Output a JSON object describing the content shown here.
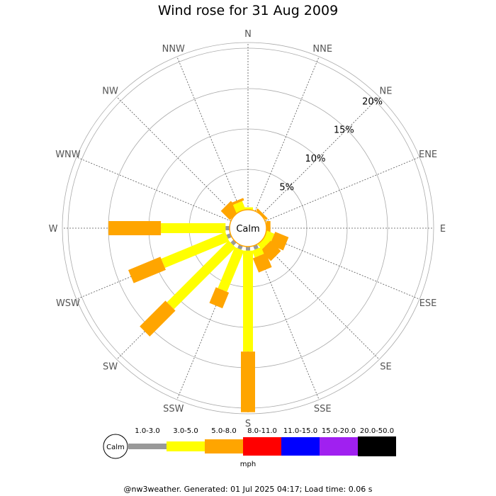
{
  "title": "Wind rose for 31 Aug 2009",
  "footer": "@nw3weather. Generated: 01 Jul 2025 04:17; Load time: 0.06 s",
  "calm_label": "Calm",
  "directions": [
    "N",
    "NNE",
    "NE",
    "ENE",
    "E",
    "ESE",
    "SE",
    "SSE",
    "S",
    "SSW",
    "SW",
    "WSW",
    "W",
    "WNW",
    "NW",
    "NNW"
  ],
  "percent_labels": [
    "5%",
    "10%",
    "15%",
    "20%"
  ],
  "legend": {
    "calm": "Calm",
    "unit": "mph",
    "bins": [
      {
        "label": "1.0-3.0",
        "color": "#999999"
      },
      {
        "label": "3.0-5.0",
        "color": "#ffff00"
      },
      {
        "label": "5.0-8.0",
        "color": "#ffa500"
      },
      {
        "label": "8.0-11.0",
        "color": "#ff0000"
      },
      {
        "label": "11.0-15.0",
        "color": "#0000ff"
      },
      {
        "label": "15.0-20.0",
        "color": "#a020f0"
      },
      {
        "label": "20.0-50.0",
        "color": "#000000"
      }
    ]
  },
  "chart_data": {
    "type": "wind-rose",
    "unit": "%",
    "rings": [
      5,
      10,
      15,
      20
    ],
    "directions": [
      "N",
      "NNE",
      "NE",
      "ENE",
      "E",
      "ESE",
      "SE",
      "SSE",
      "S",
      "SSW",
      "SW",
      "WSW",
      "W",
      "WNW",
      "NW",
      "NNW"
    ],
    "series": [
      {
        "name": "1.0-3.0",
        "color": "#999999",
        "values": [
          0,
          0,
          0,
          0,
          0,
          0,
          0,
          0.5,
          0.5,
          0.5,
          0.5,
          0.5,
          0.5,
          0,
          0,
          0
        ]
      },
      {
        "name": "3.0-5.0",
        "color": "#ffff00",
        "values": [
          0.3,
          0,
          0,
          0,
          0,
          1.0,
          0.8,
          0.9,
          12.5,
          5.5,
          10.8,
          8.6,
          8.0,
          0,
          0,
          1.1
        ]
      },
      {
        "name": "5.0-8.0",
        "color": "#ffa500",
        "values": [
          0,
          0,
          0.3,
          0,
          0.5,
          1.8,
          1.8,
          1.9,
          7.5,
          2.1,
          4.5,
          4.3,
          6.5,
          0,
          1.6,
          0.3
        ]
      }
    ]
  }
}
